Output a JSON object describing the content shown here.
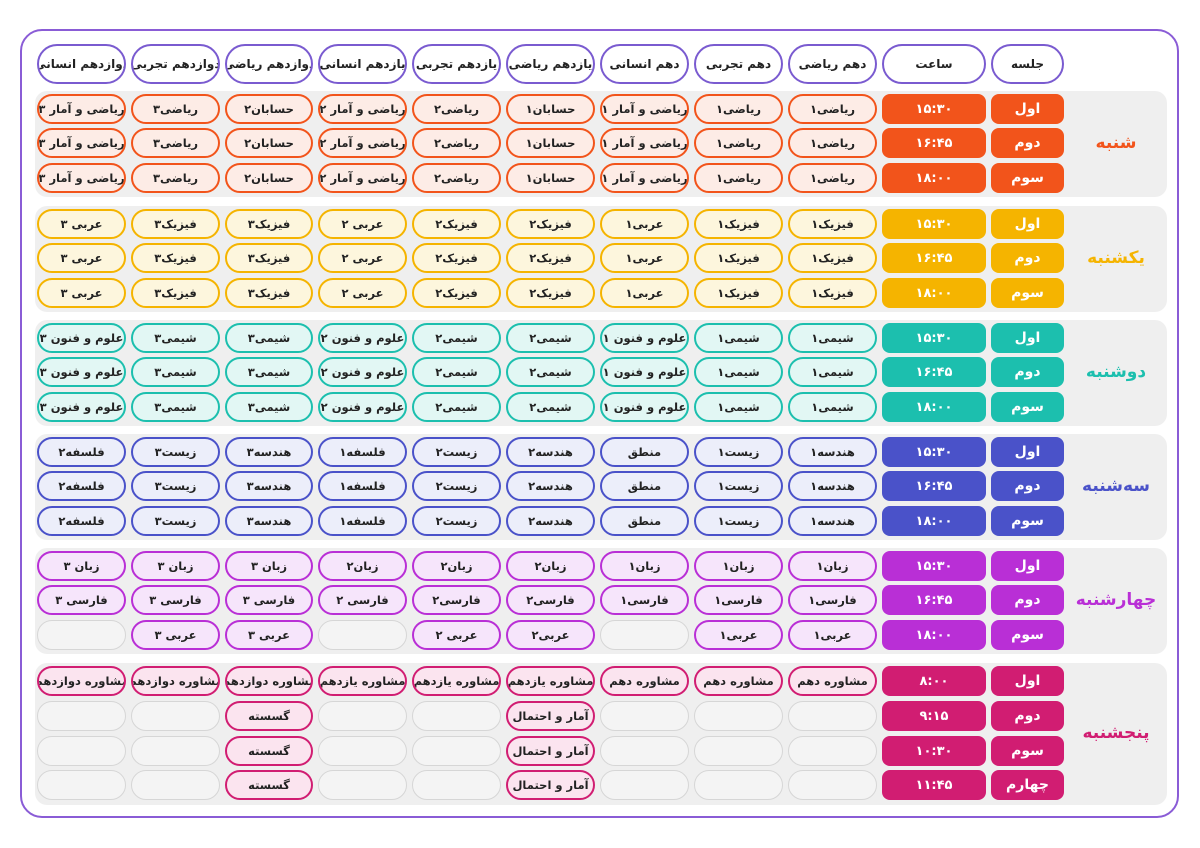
{
  "headers": [
    "جلسه",
    "ساعت",
    "دهم ریاضی",
    "دهم تجربی",
    "دهم انسانی",
    "یازدهم ریاضی",
    "یازدهم تجربی",
    "یازدهم انسانی",
    "دوازدهم ریاضی",
    "دوازدهم تجربی",
    "دوازدهم انسانی"
  ],
  "days": [
    {
      "name": "شنبه",
      "color": "#f2541b",
      "light": "#fdece6",
      "sessColor": "#f2541b",
      "timeColor": "#f2541b",
      "rows": [
        {
          "session": "اول",
          "time": "۱۵:۳۰",
          "cells": [
            "ریاضی۱",
            "ریاضی۱",
            "ریاضی و آمار ۱",
            "حسابان۱",
            "ریاضی۲",
            "ریاضی و آمار ۲",
            "حسابان۲",
            "ریاضی۳",
            "ریاضی و آمار ۳"
          ]
        },
        {
          "session": "دوم",
          "time": "۱۶:۴۵",
          "cells": [
            "ریاضی۱",
            "ریاضی۱",
            "ریاضی و آمار ۱",
            "حسابان۱",
            "ریاضی۲",
            "ریاضی و آمار ۲",
            "حسابان۲",
            "ریاضی۳",
            "ریاضی و آمار ۳"
          ]
        },
        {
          "session": "سوم",
          "time": "۱۸:۰۰",
          "cells": [
            "ریاضی۱",
            "ریاضی۱",
            "ریاضی و آمار ۱",
            "حسابان۱",
            "ریاضی۲",
            "ریاضی و آمار ۲",
            "حسابان۲",
            "ریاضی۳",
            "ریاضی و آمار ۳"
          ]
        }
      ]
    },
    {
      "name": "یکشنبه",
      "color": "#f5b400",
      "light": "#fdf6dd",
      "sessColor": "#f5b400",
      "timeColor": "#f5b400",
      "rows": [
        {
          "session": "اول",
          "time": "۱۵:۳۰",
          "cells": [
            "فیزیک۱",
            "فیزیک۱",
            "عربی۱",
            "فیزیک۲",
            "فیزیک۲",
            "عربی ۲",
            "فیزیک۳",
            "فیزیک۳",
            "عربی ۳"
          ]
        },
        {
          "session": "دوم",
          "time": "۱۶:۴۵",
          "cells": [
            "فیزیک۱",
            "فیزیک۱",
            "عربی۱",
            "فیزیک۲",
            "فیزیک۲",
            "عربی ۲",
            "فیزیک۳",
            "فیزیک۳",
            "عربی ۳"
          ]
        },
        {
          "session": "سوم",
          "time": "۱۸:۰۰",
          "cells": [
            "فیزیک۱",
            "فیزیک۱",
            "عربی۱",
            "فیزیک۲",
            "فیزیک۲",
            "عربی ۲",
            "فیزیک۳",
            "فیزیک۳",
            "عربی ۳"
          ]
        }
      ]
    },
    {
      "name": "دوشنبه",
      "color": "#1cbfae",
      "light": "#e2f7f4",
      "sessColor": "#1cbfae",
      "timeColor": "#1cbfae",
      "rows": [
        {
          "session": "اول",
          "time": "۱۵:۳۰",
          "cells": [
            "شیمی۱",
            "شیمی۱",
            "علوم و فنون ۱",
            "شیمی۲",
            "شیمی۲",
            "علوم و فنون ۲",
            "شیمی۳",
            "شیمی۳",
            "علوم و فنون ۳"
          ]
        },
        {
          "session": "دوم",
          "time": "۱۶:۴۵",
          "cells": [
            "شیمی۱",
            "شیمی۱",
            "علوم و فنون ۱",
            "شیمی۲",
            "شیمی۲",
            "علوم و فنون ۲",
            "شیمی۳",
            "شیمی۳",
            "علوم و فنون ۳"
          ]
        },
        {
          "session": "سوم",
          "time": "۱۸:۰۰",
          "cells": [
            "شیمی۱",
            "شیمی۱",
            "علوم و فنون ۱",
            "شیمی۲",
            "شیمی۲",
            "علوم و فنون ۲",
            "شیمی۳",
            "شیمی۳",
            "علوم و فنون ۳"
          ]
        }
      ]
    },
    {
      "name": "سه‌شنبه",
      "color": "#4a52c9",
      "light": "#eceefa",
      "sessColor": "#4a52c9",
      "timeColor": "#4a52c9",
      "rows": [
        {
          "session": "اول",
          "time": "۱۵:۳۰",
          "cells": [
            "هندسه۱",
            "زیست۱",
            "منطق",
            "هندسه۲",
            "زیست۲",
            "فلسفه۱",
            "هندسه۳",
            "زیست۳",
            "فلسفه۲"
          ]
        },
        {
          "session": "دوم",
          "time": "۱۶:۴۵",
          "cells": [
            "هندسه۱",
            "زیست۱",
            "منطق",
            "هندسه۲",
            "زیست۲",
            "فلسفه۱",
            "هندسه۳",
            "زیست۳",
            "فلسفه۲"
          ]
        },
        {
          "session": "سوم",
          "time": "۱۸:۰۰",
          "cells": [
            "هندسه۱",
            "زیست۱",
            "منطق",
            "هندسه۲",
            "زیست۲",
            "فلسفه۱",
            "هندسه۳",
            "زیست۳",
            "فلسفه۲"
          ]
        }
      ]
    },
    {
      "name": "چهارشنبه",
      "color": "#b92fd6",
      "light": "#f6e5fb",
      "sessColor": "#b92fd6",
      "timeColor": "#b92fd6",
      "rows": [
        {
          "session": "اول",
          "time": "۱۵:۳۰",
          "cells": [
            "زبان۱",
            "زبان۱",
            "زبان۱",
            "زبان۲",
            "زبان۲",
            "زبان۲",
            "زبان ۳",
            "زبان ۳",
            "زبان ۳"
          ]
        },
        {
          "session": "دوم",
          "time": "۱۶:۴۵",
          "cells": [
            "فارسی۱",
            "فارسی۱",
            "فارسی۱",
            "فارسی۲",
            "فارسی۲",
            "فارسی ۲",
            "فارسی ۳",
            "فارسی ۳",
            "فارسی ۳"
          ]
        },
        {
          "session": "سوم",
          "time": "۱۸:۰۰",
          "cells": [
            "عربی۱",
            "عربی۱",
            "",
            "عربی۲",
            "عربی ۲",
            "",
            "عربی ۳",
            "عربی ۳",
            ""
          ]
        }
      ]
    },
    {
      "name": "پنجشنبه",
      "color": "#d11d72",
      "light": "#fbe4ef",
      "sessColor": "#d11d72",
      "timeColor": "#d11d72",
      "rows": [
        {
          "session": "اول",
          "time": "۸:۰۰",
          "cells": [
            "مشاوره دهم",
            "مشاوره دهم",
            "مشاوره دهم",
            "مشاوره یازدهم",
            "مشاوره یازدهم",
            "مشاوره یازدهم",
            "مشاوره دوازدهم",
            "مشاوره دوازدهم",
            "مشاوره دوازدهم"
          ]
        },
        {
          "session": "دوم",
          "time": "۹:۱۵",
          "cells": [
            "",
            "",
            "",
            "آمار و احتمال",
            "",
            "",
            "گسسته",
            "",
            ""
          ]
        },
        {
          "session": "سوم",
          "time": "۱۰:۳۰",
          "cells": [
            "",
            "",
            "",
            "آمار و احتمال",
            "",
            "",
            "گسسته",
            "",
            ""
          ]
        },
        {
          "session": "چهارم",
          "time": "۱۱:۴۵",
          "cells": [
            "",
            "",
            "",
            "آمار و احتمال",
            "",
            "",
            "گسسته",
            "",
            ""
          ]
        }
      ]
    }
  ]
}
